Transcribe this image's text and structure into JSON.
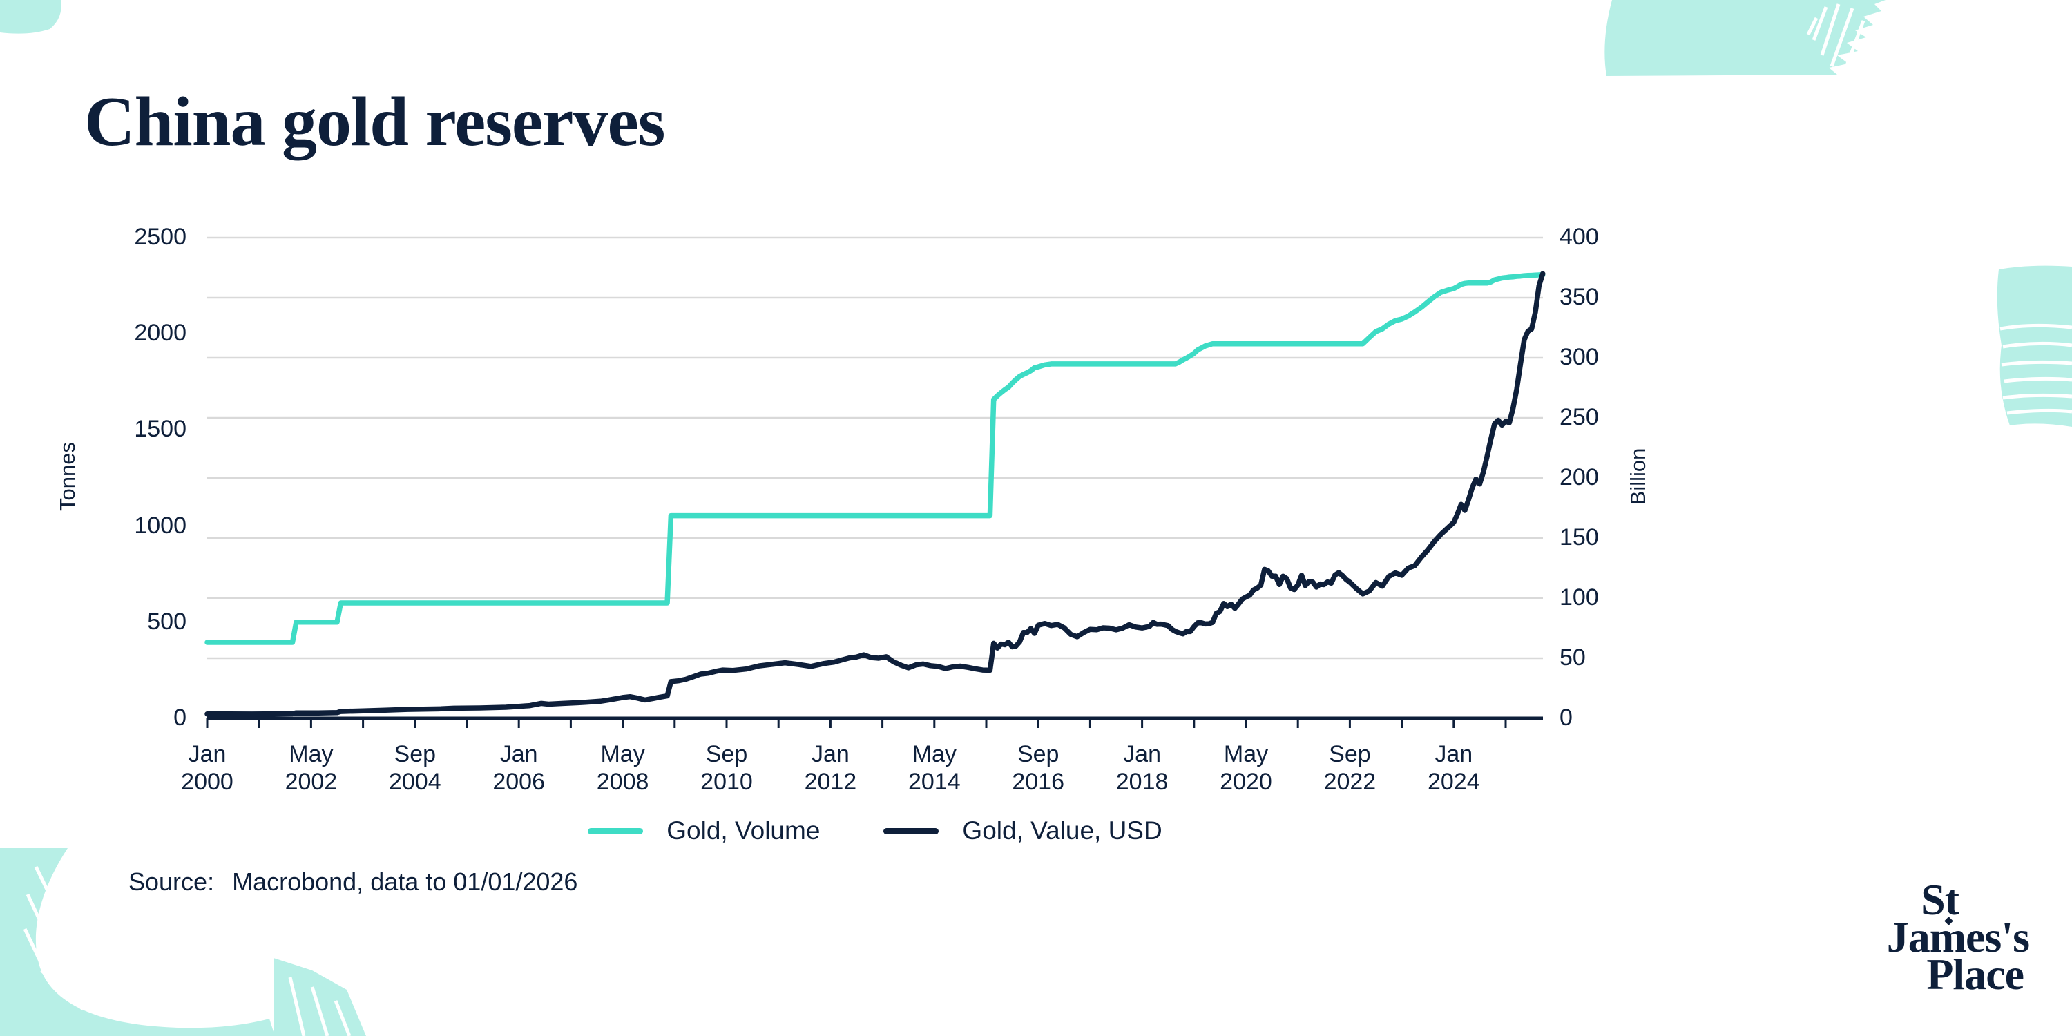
{
  "title": {
    "text": "China gold reserves"
  },
  "source": {
    "label": "Source:",
    "text": "Macrobond, data to 01/01/2026"
  },
  "logo": {
    "line1": "St",
    "line2": "James's",
    "line3": "Place"
  },
  "legend": [
    {
      "label": "Gold, Volume",
      "color": "#3edcc5"
    },
    {
      "label": "Gold, Value, USD",
      "color": "#0e1f3a"
    }
  ],
  "colors": {
    "accent_teal": "#3edcc5",
    "navy": "#0e1f3a",
    "gridline": "#d9d9d9",
    "decor_mint": "#b7efe6"
  },
  "chart_data": {
    "type": "line",
    "title": "China gold reserves",
    "x_axis": {
      "tick_labels": [
        [
          "Jan",
          "2000"
        ],
        [
          "May",
          "2002"
        ],
        [
          "Sep",
          "2004"
        ],
        [
          "Jan",
          "2006"
        ],
        [
          "May",
          "2008"
        ],
        [
          "Sep",
          "2010"
        ],
        [
          "Jan",
          "2012"
        ],
        [
          "May",
          "2014"
        ],
        [
          "Sep",
          "2016"
        ],
        [
          "Jan",
          "2018"
        ],
        [
          "May",
          "2020"
        ],
        [
          "Sep",
          "2022"
        ],
        [
          "Jan",
          "2024"
        ]
      ],
      "tick_months_since_jan2000": [
        0,
        28,
        56,
        72,
        100,
        128,
        144,
        172,
        200,
        216,
        244,
        272,
        288
      ],
      "range_months_since_jan2000": [
        0,
        312
      ]
    },
    "y_left": {
      "label": "Tonnes",
      "ticks": [
        0,
        500,
        1000,
        1500,
        2000,
        2500
      ],
      "range": [
        0,
        2500
      ]
    },
    "y_right": {
      "label": "Billion",
      "ticks": [
        0,
        50,
        100,
        150,
        200,
        250,
        300,
        350,
        400
      ],
      "range": [
        0,
        400
      ]
    },
    "grid": {
      "on": true,
      "gridline_values_right_axis": [
        50,
        100,
        150,
        200,
        250,
        300,
        350,
        400
      ]
    },
    "legend_position": "bottom-center",
    "series": [
      {
        "name": "Gold, Volume",
        "axis": "left",
        "units": "Tonnes",
        "color": "#3edcc5",
        "points_month_value": [
          [
            0,
            395
          ],
          [
            23,
            395
          ],
          [
            24,
            500
          ],
          [
            35,
            500
          ],
          [
            36,
            600
          ],
          [
            112,
            600
          ],
          [
            113,
            1054
          ],
          [
            187,
            1054
          ],
          [
            188,
            1658
          ],
          [
            189,
            1677
          ],
          [
            190,
            1694
          ],
          [
            191,
            1709
          ],
          [
            192,
            1722
          ],
          [
            193,
            1743
          ],
          [
            194,
            1762
          ],
          [
            195,
            1778
          ],
          [
            196,
            1788
          ],
          [
            197,
            1797
          ],
          [
            198,
            1808
          ],
          [
            199,
            1823
          ],
          [
            200,
            1828
          ],
          [
            201,
            1838
          ],
          [
            202,
            1843
          ],
          [
            225,
            1843
          ],
          [
            226,
            1852
          ],
          [
            227,
            1864
          ],
          [
            228,
            1874
          ],
          [
            229,
            1885
          ],
          [
            230,
            1898
          ],
          [
            231,
            1916
          ],
          [
            232,
            1926
          ],
          [
            233,
            1936
          ],
          [
            234,
            1942
          ],
          [
            235,
            1948
          ],
          [
            274,
            1948
          ],
          [
            275,
            1980
          ],
          [
            276,
            2011
          ],
          [
            277,
            2025
          ],
          [
            278,
            2050
          ],
          [
            279,
            2068
          ],
          [
            280,
            2076
          ],
          [
            281,
            2092
          ],
          [
            282,
            2113
          ],
          [
            283,
            2137
          ],
          [
            284,
            2165
          ],
          [
            285,
            2192
          ],
          [
            286,
            2215
          ],
          [
            287,
            2226
          ],
          [
            288,
            2235
          ],
          [
            289,
            2245
          ],
          [
            290,
            2257
          ],
          [
            291,
            2262
          ],
          [
            292,
            2264
          ],
          [
            297,
            2264
          ],
          [
            298,
            2269
          ],
          [
            299,
            2280
          ],
          [
            300,
            2285
          ],
          [
            301,
            2290
          ],
          [
            302,
            2292
          ],
          [
            303,
            2295
          ],
          [
            304,
            2296
          ],
          [
            305,
            2299
          ],
          [
            306,
            2300
          ],
          [
            307,
            2302
          ],
          [
            308,
            2303
          ],
          [
            309,
            2304
          ],
          [
            310,
            2305
          ],
          [
            311,
            2306
          ],
          [
            312,
            2307
          ]
        ]
      },
      {
        "name": "Gold, Value, USD",
        "axis": "right",
        "units": "Billion",
        "color": "#0e1f3a",
        "points_month_value": [
          [
            0,
            3.6
          ],
          [
            6,
            3.6
          ],
          [
            12,
            3.5
          ],
          [
            18,
            3.6
          ],
          [
            23,
            3.8
          ],
          [
            24,
            4.5
          ],
          [
            30,
            4.4
          ],
          [
            35,
            4.7
          ],
          [
            36,
            5.7
          ],
          [
            42,
            6.2
          ],
          [
            48,
            6.8
          ],
          [
            54,
            7.4
          ],
          [
            60,
            7.9
          ],
          [
            62,
            8.4
          ],
          [
            66,
            8.6
          ],
          [
            70,
            9.2
          ],
          [
            72,
            9.9
          ],
          [
            75,
            10.6
          ],
          [
            78,
            12.4
          ],
          [
            80,
            11.8
          ],
          [
            84,
            12.4
          ],
          [
            88,
            13.0
          ],
          [
            90,
            13.4
          ],
          [
            94,
            14.2
          ],
          [
            96,
            15.1
          ],
          [
            98,
            16.2
          ],
          [
            100,
            17.3
          ],
          [
            102,
            18.0
          ],
          [
            104,
            16.8
          ],
          [
            106,
            15.3
          ],
          [
            108,
            16.4
          ],
          [
            110,
            17.6
          ],
          [
            112,
            18.6
          ],
          [
            113,
            30.5
          ],
          [
            115,
            31.2
          ],
          [
            117,
            32.5
          ],
          [
            119,
            34.6
          ],
          [
            121,
            36.8
          ],
          [
            123,
            37.5
          ],
          [
            125,
            39.0
          ],
          [
            127,
            40.2
          ],
          [
            129,
            39.8
          ],
          [
            131,
            41.0
          ],
          [
            133,
            43.6
          ],
          [
            135,
            44.9
          ],
          [
            137,
            46.2
          ],
          [
            139,
            44.8
          ],
          [
            141,
            43.2
          ],
          [
            143,
            45.6
          ],
          [
            145,
            46.8
          ],
          [
            147,
            48.5
          ],
          [
            149,
            50.2
          ],
          [
            151,
            51.0
          ],
          [
            153,
            52.8
          ],
          [
            155,
            50.5
          ],
          [
            157,
            50.0
          ],
          [
            159,
            51.2
          ],
          [
            161,
            47.0
          ],
          [
            163,
            44.2
          ],
          [
            165,
            42.0
          ],
          [
            167,
            44.4
          ],
          [
            169,
            45.2
          ],
          [
            171,
            43.8
          ],
          [
            173,
            43.2
          ],
          [
            175,
            41.4
          ],
          [
            177,
            42.8
          ],
          [
            179,
            43.4
          ],
          [
            181,
            42.4
          ],
          [
            183,
            41.2
          ],
          [
            185,
            40.2
          ],
          [
            187,
            40.0
          ],
          [
            188,
            62.4
          ],
          [
            189,
            58.5
          ],
          [
            190,
            61.8
          ],
          [
            191,
            61.2
          ],
          [
            192,
            63.3
          ],
          [
            193,
            59.5
          ],
          [
            194,
            60.2
          ],
          [
            195,
            63.6
          ],
          [
            196,
            71.4
          ],
          [
            197,
            71.3
          ],
          [
            198,
            74.7
          ],
          [
            199,
            70.7
          ],
          [
            200,
            77.4
          ],
          [
            201,
            78.9
          ],
          [
            202,
            77.2
          ],
          [
            203,
            78.1
          ],
          [
            204,
            75.3
          ],
          [
            205,
            69.9
          ],
          [
            206,
            67.9
          ],
          [
            207,
            71.3
          ],
          [
            208,
            74.0
          ],
          [
            209,
            73.7
          ],
          [
            210,
            75.3
          ],
          [
            211,
            75.0
          ],
          [
            212,
            73.6
          ],
          [
            213,
            75.0
          ],
          [
            214,
            77.9
          ],
          [
            215,
            76.0
          ],
          [
            216,
            75.2
          ],
          [
            217,
            75.8
          ],
          [
            218,
            76.5
          ],
          [
            219,
            79.7
          ],
          [
            220,
            78.2
          ],
          [
            221,
            78.4
          ],
          [
            222,
            77.8
          ],
          [
            223,
            77.1
          ],
          [
            224,
            74.1
          ],
          [
            225,
            72.3
          ],
          [
            226,
            71.2
          ],
          [
            227,
            70.3
          ],
          [
            228,
            72.3
          ],
          [
            229,
            72.2
          ],
          [
            230,
            76.3
          ],
          [
            231,
            79.5
          ],
          [
            232,
            79.5
          ],
          [
            233,
            78.5
          ],
          [
            234,
            78.7
          ],
          [
            235,
            79.8
          ],
          [
            236,
            87.3
          ],
          [
            237,
            88.9
          ],
          [
            238,
            95.5
          ],
          [
            239,
            93.0
          ],
          [
            240,
            95.0
          ],
          [
            241,
            91.5
          ],
          [
            242,
            95.1
          ],
          [
            243,
            99.2
          ],
          [
            244,
            100.9
          ],
          [
            245,
            102.4
          ],
          [
            246,
            106.7
          ],
          [
            247,
            108.3
          ],
          [
            248,
            110.8
          ],
          [
            249,
            123.9
          ],
          [
            250,
            122.7
          ],
          [
            251,
            118.2
          ],
          [
            252,
            118.3
          ],
          [
            253,
            111.3
          ],
          [
            254,
            118.2
          ],
          [
            255,
            116.2
          ],
          [
            256,
            108.5
          ],
          [
            257,
            107.1
          ],
          [
            258,
            111.0
          ],
          [
            259,
            119.0
          ],
          [
            260,
            110.5
          ],
          [
            261,
            113.8
          ],
          [
            262,
            113.4
          ],
          [
            263,
            109.2
          ],
          [
            264,
            111.7
          ],
          [
            265,
            111.2
          ],
          [
            266,
            113.5
          ],
          [
            267,
            112.5
          ],
          [
            268,
            119.2
          ],
          [
            269,
            121.2
          ],
          [
            270,
            118.8
          ],
          [
            271,
            115.5
          ],
          [
            272,
            113.2
          ],
          [
            273,
            108.0
          ],
          [
            274,
            103.5
          ],
          [
            275,
            106.0
          ],
          [
            276,
            113.0
          ],
          [
            277,
            110.0
          ],
          [
            278,
            118.0
          ],
          [
            279,
            121.0
          ],
          [
            280,
            119.0
          ],
          [
            281,
            125.0
          ],
          [
            282,
            127.0
          ],
          [
            283,
            134.0
          ],
          [
            284,
            140.0
          ],
          [
            285,
            147.0
          ],
          [
            286,
            153.0
          ],
          [
            287,
            158.0
          ],
          [
            288,
            163.0
          ],
          [
            289,
            170.0
          ],
          [
            290,
            178.0
          ],
          [
            291,
            173.0
          ],
          [
            292,
            182.0
          ],
          [
            293,
            192.0
          ],
          [
            294,
            199.0
          ],
          [
            295,
            195.0
          ],
          [
            296,
            205.0
          ],
          [
            297,
            218.0
          ],
          [
            298,
            232.0
          ],
          [
            299,
            245.0
          ],
          [
            300,
            248.0
          ],
          [
            301,
            244.0
          ],
          [
            302,
            247.0
          ],
          [
            303,
            246.0
          ],
          [
            304,
            258.0
          ],
          [
            305,
            274.0
          ],
          [
            306,
            295.0
          ],
          [
            307,
            315.0
          ],
          [
            308,
            322.0
          ],
          [
            309,
            324.0
          ],
          [
            310,
            338.0
          ],
          [
            311,
            360.0
          ],
          [
            312,
            370.0
          ]
        ]
      }
    ]
  }
}
